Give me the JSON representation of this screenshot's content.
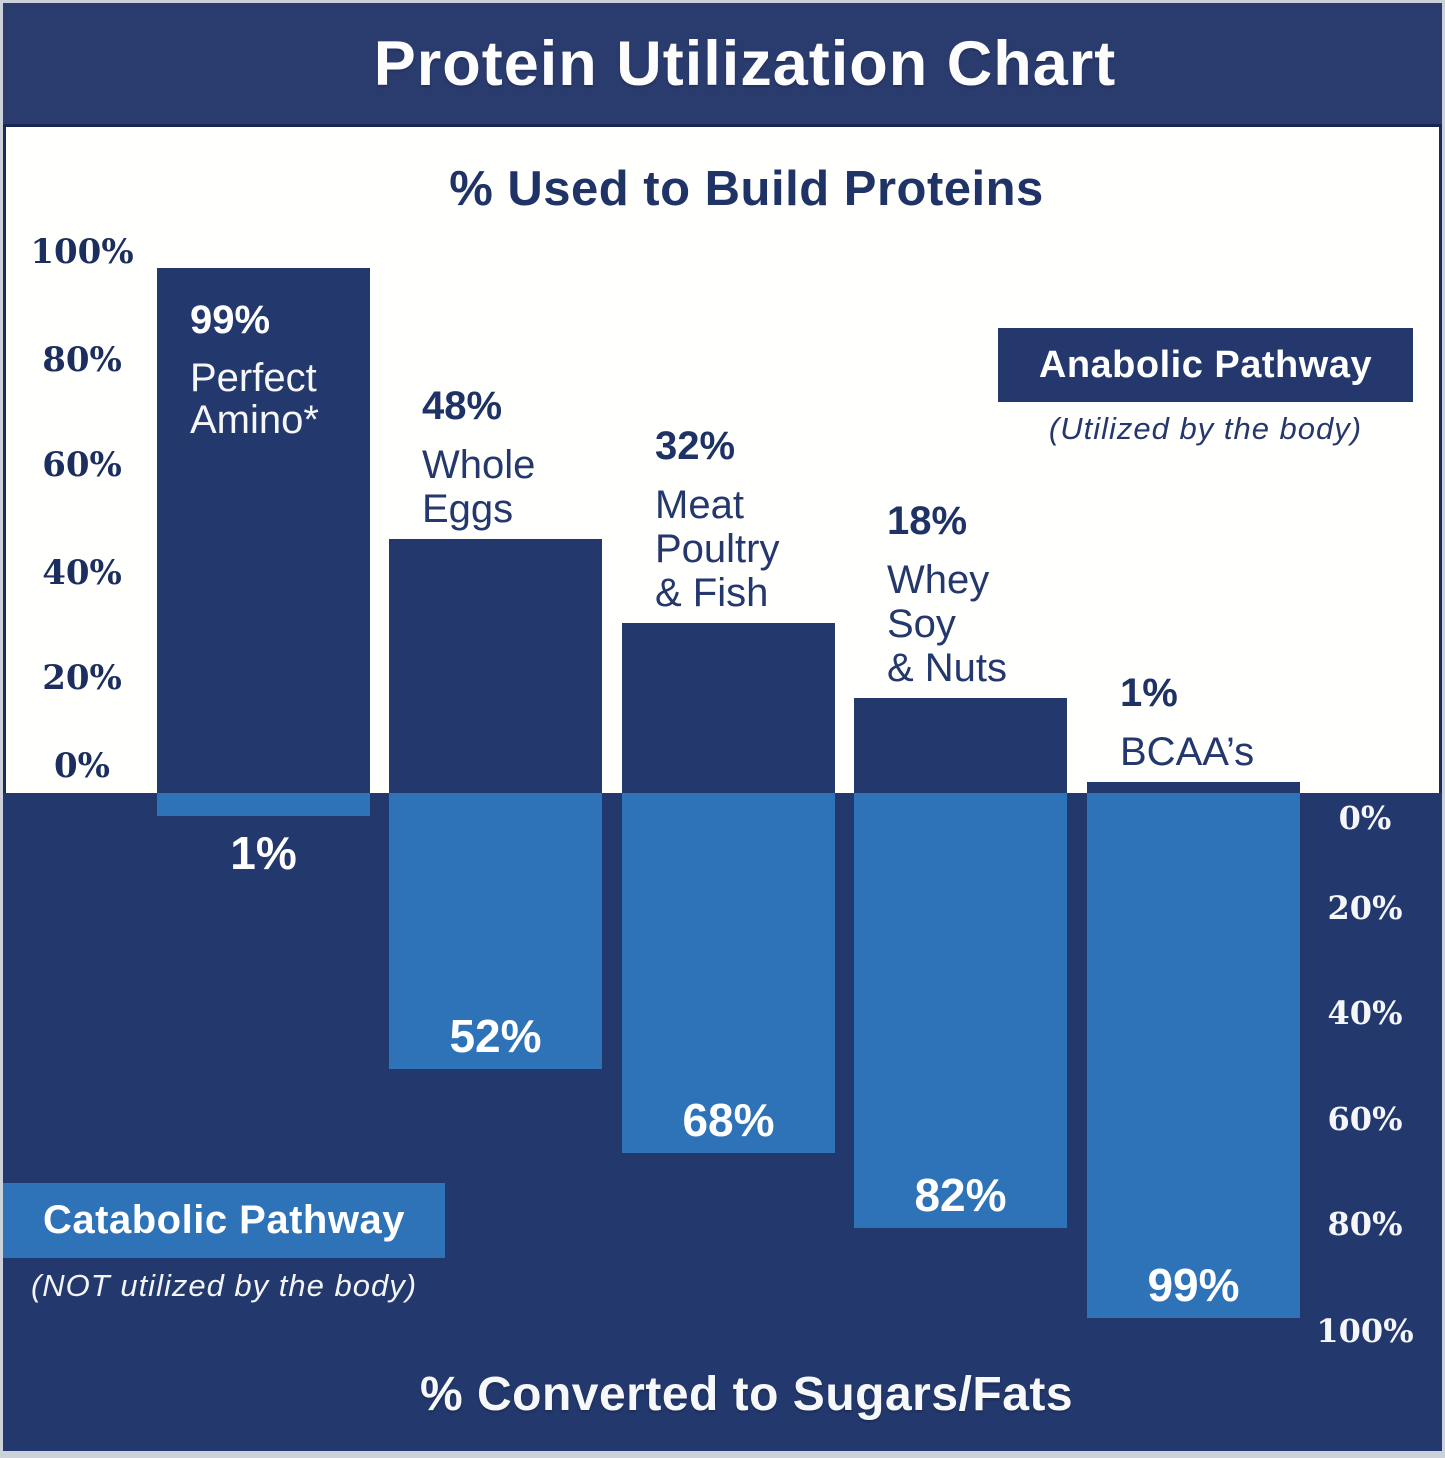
{
  "header": {
    "title": "Protein Utilization Chart"
  },
  "upper_axis": {
    "title": "% Used to Build Proteins",
    "tick_labels": [
      "100%",
      "80%",
      "60%",
      "40%",
      "20%",
      "0%"
    ]
  },
  "lower_axis": {
    "title": "% Converted to Sugars/Fats",
    "tick_labels": [
      "0%",
      "20%",
      "40%",
      "60%",
      "80%",
      "100%"
    ]
  },
  "anabolic_legend": {
    "label": "Anabolic Pathway",
    "sublabel": "(Utilized by the body)"
  },
  "catabolic_legend": {
    "label": "Catabolic Pathway",
    "sublabel": "(NOT utilized by the body)"
  },
  "colors": {
    "navy": "#23386c",
    "header_navy": "#2a3b6e",
    "light_blue": "#2e72b8",
    "navy_text": "#1f3366",
    "white": "#ffffff",
    "frame": "#cdd2da"
  },
  "chart_data": {
    "type": "bar",
    "subtype": "diverging vertical bars: anabolic % up from zero line, catabolic % down",
    "title": "Protein Utilization Chart",
    "top_axis_label": "% Used to Build Proteins",
    "bottom_axis_label": "% Converted to Sugars/Fats",
    "categories": [
      "Perfect Amino*",
      "Whole Eggs",
      "Meat Poultry & Fish",
      "Whey Soy & Nuts",
      "BCAA’s"
    ],
    "series": [
      {
        "name": "Anabolic Pathway (Utilized by the body) — % Used to Build Proteins",
        "values": [
          99,
          48,
          32,
          18,
          1
        ]
      },
      {
        "name": "Catabolic Pathway (NOT utilized by the body) — % Converted to Sugars/Fats",
        "values": [
          1,
          52,
          68,
          82,
          99
        ]
      }
    ],
    "ylim_up": [
      0,
      100
    ],
    "ylim_down": [
      0,
      100
    ],
    "grid": false,
    "legend_position": "anabolic label upper-right on white area; catabolic label lower-left on navy area",
    "columns": [
      {
        "pct_label": "99%",
        "name_lines": [
          "Perfect",
          "Amino*"
        ],
        "anabolic": 99,
        "catabolic": 1,
        "catabolic_label": "1%",
        "pct_inside_bar": true
      },
      {
        "pct_label": "48%",
        "name_lines": [
          "Whole",
          "Eggs"
        ],
        "anabolic": 48,
        "catabolic": 52,
        "catabolic_label": "52%",
        "pct_inside_bar": false
      },
      {
        "pct_label": "32%",
        "name_lines": [
          "Meat",
          "Poultry",
          "& Fish"
        ],
        "anabolic": 32,
        "catabolic": 68,
        "catabolic_label": "68%",
        "pct_inside_bar": false
      },
      {
        "pct_label": "18%",
        "name_lines": [
          "Whey",
          "Soy",
          "& Nuts"
        ],
        "anabolic": 18,
        "catabolic": 82,
        "catabolic_label": "82%",
        "pct_inside_bar": false
      },
      {
        "pct_label": "1%",
        "name_lines": [
          "BCAA’s"
        ],
        "anabolic": 1,
        "catabolic": 99,
        "catabolic_label": "99%",
        "pct_inside_bar": false
      }
    ]
  }
}
